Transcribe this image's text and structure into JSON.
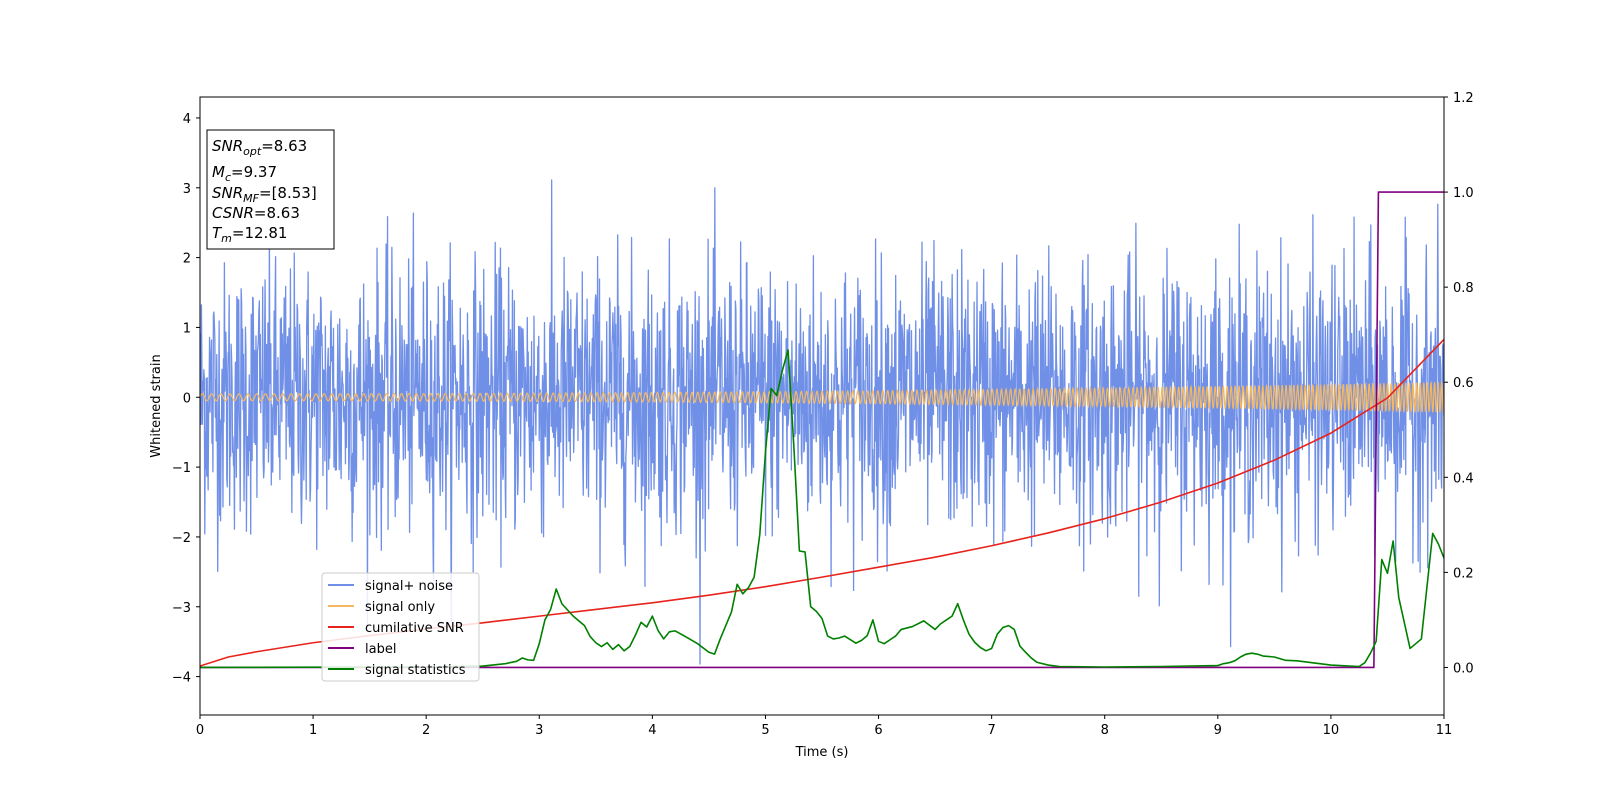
{
  "chart_data": {
    "type": "line",
    "xlabel": "Time (s)",
    "ylabel": "Whitened strain",
    "xlim": [
      0,
      11
    ],
    "ylim_left": [
      -4.55,
      4.3
    ],
    "ylim_right": [
      -0.1,
      1.2
    ],
    "x_ticks": [
      "0",
      "1",
      "2",
      "3",
      "4",
      "5",
      "6",
      "7",
      "8",
      "9",
      "10",
      "11"
    ],
    "y_left_ticks": [
      "4",
      "3",
      "2",
      "1",
      "0",
      "−1",
      "−2",
      "−3",
      "−4"
    ],
    "y_right_ticks": [
      "1.2",
      "1.0",
      "0.8",
      "0.6",
      "0.4",
      "0.2",
      "0.0"
    ],
    "grid": false,
    "legend_placement": "lower-left",
    "info_box": {
      "lines": [
        {
          "var": "SNR",
          "sub": "opt",
          "value": "=8.63"
        },
        {
          "var": "M",
          "sub": "c",
          "value": "=9.37"
        },
        {
          "var": "SNR",
          "sub": "MF",
          "value": "=[8.53]"
        },
        {
          "var": "CSNR",
          "sub": "",
          "value": "=8.63"
        },
        {
          "var": "T",
          "sub": "m",
          "value": "=12.81"
        }
      ]
    },
    "series": [
      {
        "name": "signal+ noise",
        "axis": "left",
        "color": "#7090e8",
        "kind": "noise",
        "sigma": 0.95,
        "clip": [
          -4.15,
          3.9
        ]
      },
      {
        "name": "signal only",
        "axis": "left",
        "color": "#f5b860",
        "kind": "chirp",
        "amp_start": 0.05,
        "amp_end": 0.22
      },
      {
        "name": "cumilative SNR",
        "axis": "right",
        "color": "#e8231c",
        "x": [
          0,
          0.25,
          0.5,
          1,
          1.5,
          2,
          2.5,
          3,
          3.5,
          4,
          4.5,
          5,
          5.5,
          6,
          6.5,
          7,
          7.5,
          8,
          8.5,
          9,
          9.5,
          10,
          10.5,
          11
        ],
        "y": [
          0.003,
          0.022,
          0.033,
          0.052,
          0.067,
          0.081,
          0.094,
          0.108,
          0.122,
          0.136,
          0.152,
          0.17,
          0.19,
          0.211,
          0.232,
          0.256,
          0.283,
          0.313,
          0.348,
          0.388,
          0.436,
          0.493,
          0.567,
          0.69
        ]
      },
      {
        "name": "label",
        "axis": "right",
        "color": "#800080",
        "x": [
          0,
          10.38,
          10.42,
          11
        ],
        "y": [
          0.0,
          0.0,
          1.0,
          1.0
        ]
      },
      {
        "name": "signal statistics",
        "axis": "right",
        "color": "#008000",
        "x": [
          0,
          2.0,
          2.5,
          2.7,
          2.8,
          2.85,
          2.9,
          2.95,
          3.0,
          3.05,
          3.1,
          3.15,
          3.2,
          3.3,
          3.4,
          3.45,
          3.5,
          3.55,
          3.6,
          3.65,
          3.7,
          3.75,
          3.8,
          3.85,
          3.9,
          3.95,
          4.0,
          4.05,
          4.1,
          4.15,
          4.2,
          4.3,
          4.4,
          4.5,
          4.55,
          4.6,
          4.7,
          4.75,
          4.8,
          4.85,
          4.9,
          4.95,
          5.0,
          5.05,
          5.1,
          5.15,
          5.2,
          5.25,
          5.3,
          5.35,
          5.4,
          5.45,
          5.5,
          5.55,
          5.6,
          5.65,
          5.7,
          5.8,
          5.85,
          5.9,
          5.95,
          6.0,
          6.05,
          6.1,
          6.15,
          6.2,
          6.3,
          6.4,
          6.5,
          6.55,
          6.6,
          6.65,
          6.7,
          6.75,
          6.8,
          6.85,
          6.9,
          6.95,
          7.0,
          7.05,
          7.1,
          7.15,
          7.2,
          7.25,
          7.3,
          7.35,
          7.4,
          7.5,
          7.6,
          8.0,
          8.5,
          9.0,
          9.05,
          9.1,
          9.15,
          9.2,
          9.25,
          9.3,
          9.35,
          9.4,
          9.5,
          9.6,
          9.7,
          10.0,
          10.25,
          10.3,
          10.35,
          10.4,
          10.45,
          10.5,
          10.55,
          10.6,
          10.7,
          10.8,
          10.9,
          10.95,
          11.0
        ],
        "y": [
          0.0,
          0.001,
          0.003,
          0.008,
          0.013,
          0.02,
          0.016,
          0.015,
          0.05,
          0.1,
          0.122,
          0.165,
          0.134,
          0.108,
          0.088,
          0.065,
          0.052,
          0.044,
          0.052,
          0.038,
          0.048,
          0.035,
          0.044,
          0.068,
          0.095,
          0.085,
          0.108,
          0.078,
          0.06,
          0.075,
          0.077,
          0.064,
          0.05,
          0.032,
          0.028,
          0.06,
          0.117,
          0.175,
          0.155,
          0.168,
          0.19,
          0.28,
          0.452,
          0.587,
          0.572,
          0.625,
          0.668,
          0.47,
          0.245,
          0.243,
          0.128,
          0.118,
          0.103,
          0.066,
          0.06,
          0.062,
          0.066,
          0.051,
          0.057,
          0.067,
          0.1,
          0.055,
          0.05,
          0.058,
          0.066,
          0.08,
          0.086,
          0.098,
          0.08,
          0.092,
          0.1,
          0.108,
          0.134,
          0.1,
          0.07,
          0.053,
          0.042,
          0.035,
          0.04,
          0.07,
          0.084,
          0.088,
          0.08,
          0.045,
          0.032,
          0.02,
          0.011,
          0.005,
          0.002,
          0.001,
          0.002,
          0.004,
          0.008,
          0.01,
          0.014,
          0.022,
          0.028,
          0.03,
          0.028,
          0.024,
          0.022,
          0.015,
          0.014,
          0.005,
          0.002,
          0.01,
          0.03,
          0.055,
          0.227,
          0.198,
          0.266,
          0.147,
          0.04,
          0.06,
          0.282,
          0.26,
          0.23
        ]
      }
    ]
  }
}
